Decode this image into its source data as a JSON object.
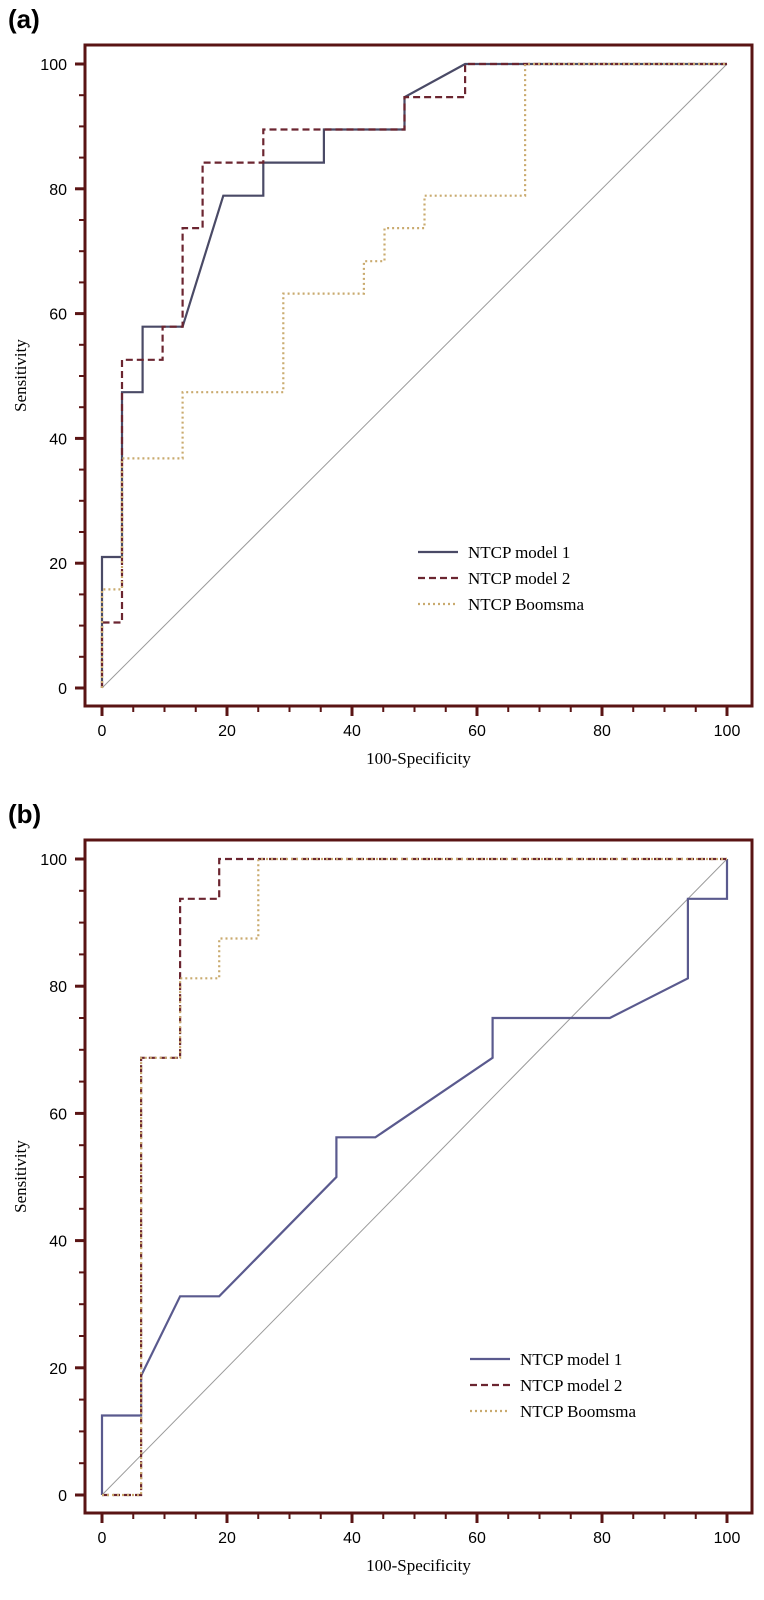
{
  "chart_data": [
    {
      "panel_label": "(a)",
      "type": "line",
      "xlabel": "100-Specificity",
      "ylabel": "Sensitivity",
      "xlim": [
        0,
        100
      ],
      "ylim": [
        0,
        100
      ],
      "xticks": [
        0,
        20,
        40,
        60,
        80,
        100
      ],
      "yticks": [
        0,
        20,
        40,
        60,
        80,
        100
      ],
      "grid": false,
      "legend_position": "bottom-right",
      "reference_line": true,
      "series": [
        {
          "name": "NTCP model 1",
          "style": "solid",
          "color": "#4a4a66",
          "points": [
            [
              0,
              0
            ],
            [
              0,
              21
            ],
            [
              3.2,
              21
            ],
            [
              3.2,
              47.4
            ],
            [
              6.5,
              47.4
            ],
            [
              6.5,
              57.9
            ],
            [
              12.9,
              57.9
            ],
            [
              19.4,
              78.9
            ],
            [
              25.8,
              78.9
            ],
            [
              25.8,
              84.2
            ],
            [
              35.5,
              84.2
            ],
            [
              35.5,
              89.5
            ],
            [
              48.4,
              89.5
            ],
            [
              48.4,
              94.7
            ],
            [
              58.1,
              100
            ],
            [
              100,
              100
            ]
          ]
        },
        {
          "name": "NTCP model 2",
          "style": "dashed",
          "color": "#6b2530",
          "points": [
            [
              0,
              0
            ],
            [
              0,
              10.5
            ],
            [
              3.2,
              10.5
            ],
            [
              3.2,
              52.6
            ],
            [
              9.7,
              52.6
            ],
            [
              9.7,
              57.9
            ],
            [
              12.9,
              57.9
            ],
            [
              12.9,
              73.7
            ],
            [
              16.1,
              73.7
            ],
            [
              16.1,
              84.2
            ],
            [
              25.8,
              84.2
            ],
            [
              25.8,
              89.5
            ],
            [
              48.4,
              89.5
            ],
            [
              48.4,
              94.7
            ],
            [
              58.1,
              94.7
            ],
            [
              58.1,
              100
            ],
            [
              100,
              100
            ]
          ]
        },
        {
          "name": "NTCP Boomsma",
          "style": "dotted",
          "color": "#c9aa6e",
          "points": [
            [
              0,
              0
            ],
            [
              0,
              15.8
            ],
            [
              3.2,
              15.8
            ],
            [
              3.2,
              36.8
            ],
            [
              12.9,
              36.8
            ],
            [
              12.9,
              47.4
            ],
            [
              29,
              47.4
            ],
            [
              29,
              63.2
            ],
            [
              41.9,
              63.2
            ],
            [
              41.9,
              68.4
            ],
            [
              45.2,
              68.4
            ],
            [
              45.2,
              73.7
            ],
            [
              51.6,
              73.7
            ],
            [
              51.6,
              78.9
            ],
            [
              67.7,
              78.9
            ],
            [
              67.7,
              100
            ],
            [
              100,
              100
            ]
          ]
        }
      ]
    },
    {
      "panel_label": "(b)",
      "type": "line",
      "xlabel": "100-Specificity",
      "ylabel": "Sensitivity",
      "xlim": [
        0,
        100
      ],
      "ylim": [
        0,
        100
      ],
      "xticks": [
        0,
        20,
        40,
        60,
        80,
        100
      ],
      "yticks": [
        0,
        20,
        40,
        60,
        80,
        100
      ],
      "grid": false,
      "legend_position": "bottom-right",
      "reference_line": true,
      "series": [
        {
          "name": "NTCP model 1",
          "style": "solid",
          "color": "#5a5a8e",
          "points": [
            [
              0,
              0
            ],
            [
              0,
              12.5
            ],
            [
              6.25,
              12.5
            ],
            [
              6.25,
              18.75
            ],
            [
              12.5,
              31.25
            ],
            [
              18.75,
              31.25
            ],
            [
              37.5,
              50
            ],
            [
              37.5,
              56.25
            ],
            [
              43.75,
              56.25
            ],
            [
              62.5,
              68.75
            ],
            [
              62.5,
              75
            ],
            [
              81.25,
              75
            ],
            [
              93.75,
              81.25
            ],
            [
              93.75,
              93.75
            ],
            [
              100,
              93.75
            ],
            [
              100,
              100
            ]
          ]
        },
        {
          "name": "NTCP model 2",
          "style": "dashed",
          "color": "#6b2530",
          "points": [
            [
              0,
              0
            ],
            [
              6.25,
              0
            ],
            [
              6.25,
              68.75
            ],
            [
              12.5,
              68.75
            ],
            [
              12.5,
              93.75
            ],
            [
              18.75,
              93.75
            ],
            [
              18.75,
              100
            ],
            [
              100,
              100
            ]
          ]
        },
        {
          "name": "NTCP Boomsma",
          "style": "dotted",
          "color": "#c9aa6e",
          "points": [
            [
              0,
              0
            ],
            [
              6.25,
              0
            ],
            [
              6.25,
              68.75
            ],
            [
              12.5,
              68.75
            ],
            [
              12.5,
              81.25
            ],
            [
              18.75,
              81.25
            ],
            [
              18.75,
              87.5
            ],
            [
              25,
              87.5
            ],
            [
              25,
              100
            ],
            [
              100,
              100
            ]
          ]
        }
      ]
    }
  ]
}
